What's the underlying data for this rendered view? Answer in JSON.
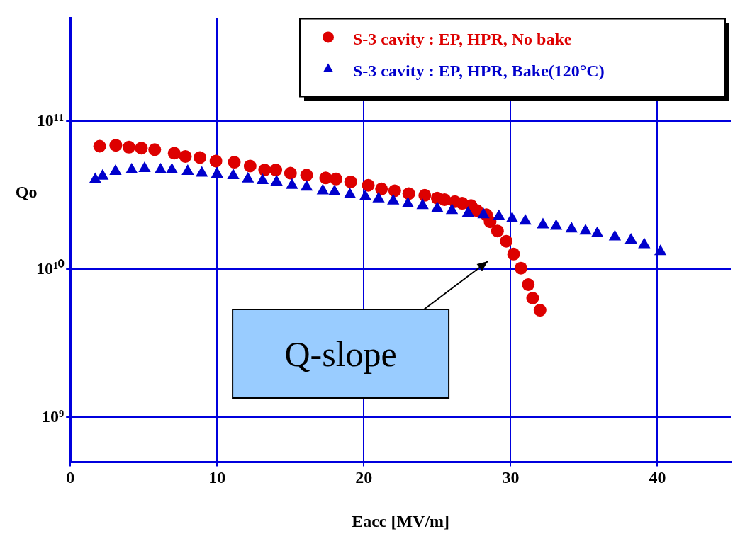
{
  "chart_data": {
    "type": "scatter",
    "xlabel": "Eacc [MV/m]",
    "ylabel": "Qo",
    "log": "y",
    "grid": true,
    "legend": "top right",
    "xlim": [
      0,
      45
    ],
    "xticks": [
      0,
      10,
      20,
      30,
      40
    ],
    "ylim": [
      500000000,
      500000000000
    ],
    "yticks": [
      {
        "value": 1000000000,
        "label": "10⁹"
      },
      {
        "value": 10000000000,
        "label": "10¹⁰"
      },
      {
        "value": 100000000000,
        "label": "10¹¹"
      }
    ],
    "annotations": [
      "Q-slope"
    ],
    "series": [
      {
        "name": "S-3 cavity : EP, HPR, No bake",
        "color": "#dd0000",
        "marker": "circle",
        "x": [
          2.0,
          3.1,
          4.0,
          4.84,
          5.75,
          7.08,
          7.84,
          8.83,
          9.92,
          11.17,
          12.25,
          13.24,
          14.0,
          15.0,
          16.1,
          17.4,
          18.1,
          19.1,
          20.3,
          21.2,
          22.1,
          23.06,
          24.15,
          25.0,
          25.5,
          26.2,
          26.7,
          27.3,
          27.7,
          28.35,
          28.6,
          29.1,
          29.7,
          30.2,
          30.7,
          31.2,
          31.5,
          32.0
        ],
        "values": [
          68000000000,
          69000000000,
          67000000000,
          66000000000,
          64500000000,
          61000000000,
          58000000000,
          57000000000,
          54000000000,
          53000000000,
          50000000000,
          47000000000,
          47000000000,
          44700000000,
          43400000000,
          41500000000,
          40800000000,
          39000000000,
          37000000000,
          35000000000,
          34000000000,
          32500000000,
          31700000000,
          30300000000,
          29600000000,
          28700000000,
          28000000000,
          27000000000,
          25000000000,
          23400000000,
          21000000000,
          18200000000,
          15500000000,
          12700000000,
          10200000000,
          7900000000,
          6400000000,
          5300000000
        ]
      },
      {
        "name": "S-3 cavity : EP, HPR, Bake(120°C)",
        "color": "#0000cc",
        "marker": "triangle",
        "x": [
          1.7,
          2.2,
          3.08,
          4.18,
          5.06,
          6.15,
          6.92,
          8.0,
          8.96,
          10.0,
          11.1,
          12.1,
          13.1,
          14.05,
          15.1,
          16.1,
          17.2,
          18.0,
          19.05,
          20.1,
          21.0,
          22.0,
          23.0,
          24.0,
          25.0,
          26.0,
          27.1,
          28.15,
          29.2,
          30.1,
          31.0,
          32.2,
          33.1,
          34.15,
          35.1,
          35.9,
          37.1,
          38.2,
          39.1,
          40.2
        ],
        "values": [
          40500000000,
          42700000000,
          46000000000,
          47000000000,
          48000000000,
          47000000000,
          47000000000,
          46000000000,
          44700000000,
          44000000000,
          43000000000,
          40800000000,
          39800000000,
          39000000000,
          37000000000,
          36000000000,
          34000000000,
          33500000000,
          32000000000,
          31000000000,
          30000000000,
          29000000000,
          27700000000,
          27000000000,
          25800000000,
          25000000000,
          24000000000,
          23400000000,
          22800000000,
          22000000000,
          21200000000,
          20000000000,
          19600000000,
          18800000000,
          18200000000,
          17500000000,
          16600000000,
          15800000000,
          14700000000,
          13200000000
        ]
      }
    ]
  }
}
